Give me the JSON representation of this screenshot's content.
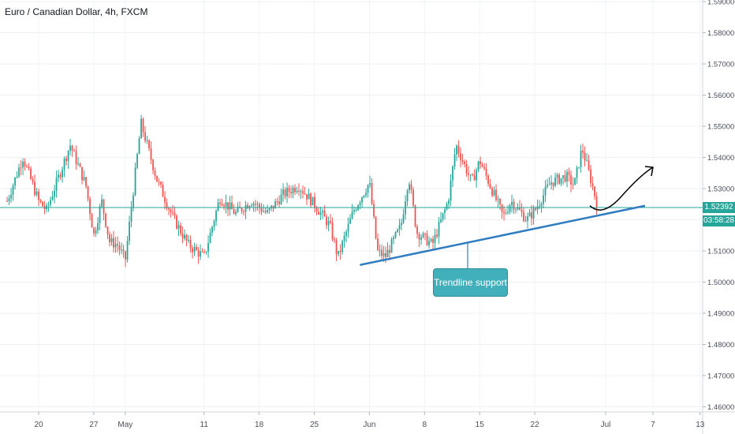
{
  "title": {
    "symbol": "Euro / Canadian Dollar",
    "interval": "4h",
    "source": "FXCM"
  },
  "annotation": {
    "label": "Trendline support"
  },
  "price_tag": "1.52392",
  "countdown": "03:58:28",
  "colors": {
    "up": "#26a69a",
    "down": "#ef5350",
    "trendline": "#2f7dc0",
    "callout": "#41b0bb",
    "lastprice_line": "#26a69a",
    "arrow": "#000000"
  },
  "chart_data": {
    "type": "candlestick",
    "ylim": [
      1.455,
      1.59
    ],
    "y_ticks": [
      "1.59000",
      "1.58000",
      "1.57000",
      "1.56000",
      "1.55000",
      "1.54000",
      "1.53000",
      "1.52000",
      "1.51000",
      "1.50000",
      "1.49000",
      "1.48000",
      "1.47000",
      "1.46000"
    ],
    "x_ticks": [
      "20",
      "27",
      "May",
      "11",
      "18",
      "25",
      "Jun",
      "8",
      "15",
      "22",
      "Jul",
      "7",
      "13"
    ],
    "last_price": 1.52392,
    "close_path": [
      {
        "x": "Apr 16",
        "y": 1.526
      },
      {
        "x": "Apr 18",
        "y": 1.54
      },
      {
        "x": "Apr 20",
        "y": 1.526
      },
      {
        "x": "Apr 21",
        "y": 1.523
      },
      {
        "x": "Apr 23",
        "y": 1.537
      },
      {
        "x": "Apr 24",
        "y": 1.544
      },
      {
        "x": "Apr 26",
        "y": 1.531
      },
      {
        "x": "Apr 27",
        "y": 1.515
      },
      {
        "x": "Apr 28",
        "y": 1.526
      },
      {
        "x": "Apr 29",
        "y": 1.513
      },
      {
        "x": "Apr 30",
        "y": 1.512
      },
      {
        "x": "May 1",
        "y": 1.507
      },
      {
        "x": "May 2",
        "y": 1.529
      },
      {
        "x": "May 3",
        "y": 1.551
      },
      {
        "x": "May 5",
        "y": 1.533
      },
      {
        "x": "May 7",
        "y": 1.521
      },
      {
        "x": "May 9",
        "y": 1.512
      },
      {
        "x": "May 11",
        "y": 1.508
      },
      {
        "x": "May 13",
        "y": 1.527
      },
      {
        "x": "May 15",
        "y": 1.522
      },
      {
        "x": "May 17",
        "y": 1.526
      },
      {
        "x": "May 19",
        "y": 1.522
      },
      {
        "x": "May 21",
        "y": 1.528
      },
      {
        "x": "May 23",
        "y": 1.531
      },
      {
        "x": "May 25",
        "y": 1.525
      },
      {
        "x": "May 27",
        "y": 1.518
      },
      {
        "x": "May 28",
        "y": 1.508
      },
      {
        "x": "May 30",
        "y": 1.523
      },
      {
        "x": "Jun 1",
        "y": 1.532
      },
      {
        "x": "Jun 2",
        "y": 1.51
      },
      {
        "x": "Jun 3",
        "y": 1.508
      },
      {
        "x": "Jun 5",
        "y": 1.518
      },
      {
        "x": "Jun 6",
        "y": 1.534
      },
      {
        "x": "Jun 7",
        "y": 1.516
      },
      {
        "x": "Jun 9",
        "y": 1.512
      },
      {
        "x": "Jun 11",
        "y": 1.526
      },
      {
        "x": "Jun 12",
        "y": 1.544
      },
      {
        "x": "Jun 14",
        "y": 1.532
      },
      {
        "x": "Jun 15",
        "y": 1.539
      },
      {
        "x": "Jun 17",
        "y": 1.527
      },
      {
        "x": "Jun 18",
        "y": 1.521
      },
      {
        "x": "Jun 19",
        "y": 1.526
      },
      {
        "x": "Jun 21",
        "y": 1.52
      },
      {
        "x": "Jun 22",
        "y": 1.523
      },
      {
        "x": "Jun 24",
        "y": 1.532
      },
      {
        "x": "Jun 26",
        "y": 1.534
      },
      {
        "x": "Jun 27",
        "y": 1.531
      },
      {
        "x": "Jun 28",
        "y": 1.543
      },
      {
        "x": "Jun 29",
        "y": 1.534
      },
      {
        "x": "Jun 30",
        "y": 1.524
      }
    ],
    "trendline": [
      {
        "x": "Jun 1",
        "y": 1.5055
      },
      {
        "x": "Jul 4",
        "y": 1.5245
      }
    ],
    "projection": [
      {
        "x": "Jun 30",
        "y": 1.5245
      },
      {
        "x": "Jul 1",
        "y": 1.5232
      },
      {
        "x": "Jul 3",
        "y": 1.5275
      },
      {
        "x": "Jul 4",
        "y": 1.5338
      }
    ]
  }
}
